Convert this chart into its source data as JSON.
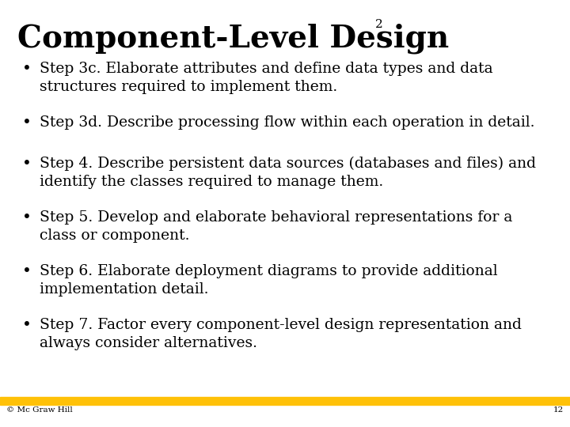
{
  "title": "Component-Level Design",
  "title_superscript": "2",
  "background_color": "#ffffff",
  "text_color": "#000000",
  "title_fontsize": 28,
  "title_font": "serif",
  "body_fontsize": 13.5,
  "body_font": "serif",
  "footer_bar_color": "#FFC107",
  "footer_left_text": "© Mc Graw Hill",
  "footer_right_text": "12",
  "footer_fontsize": 7.5,
  "bullet_items": [
    "Step 3c. Elaborate attributes and define data types and data\nstructures required to implement them.",
    "Step 3d. Describe processing flow within each operation in detail.",
    "Step 4. Describe persistent data sources (databases and files) and\nidentify the classes required to manage them.",
    "Step 5. Develop and elaborate behavioral representations for a\nclass or component.",
    "Step 6. Elaborate deployment diagrams to provide additional\nimplementation detail.",
    "Step 7. Factor every component-level design representation and\nalways consider alternatives."
  ]
}
